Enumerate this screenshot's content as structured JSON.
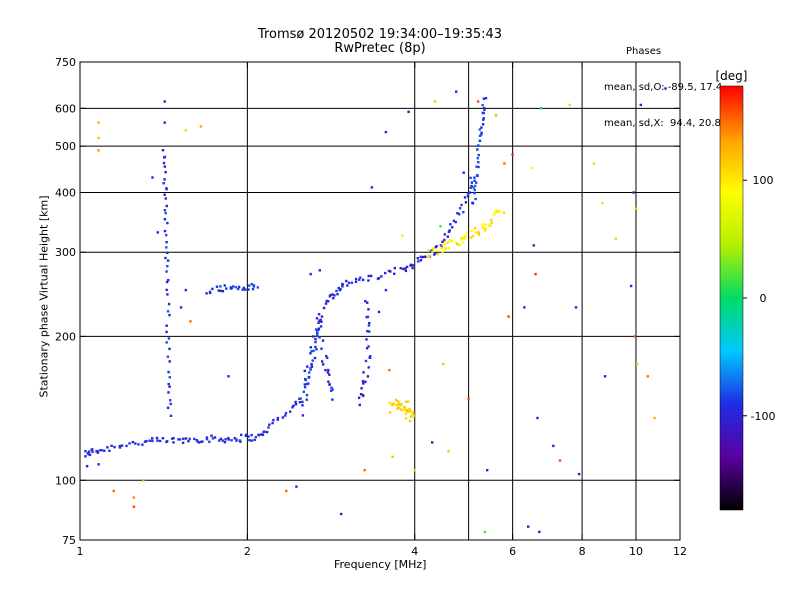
{
  "header": {
    "title": "Tromsø 20120502 19:34:00–19:35:43",
    "subtitle": "RwPretec (8p)"
  },
  "phases_box": {
    "title": "Phases",
    "line_o": "mean, sd,O: -89.5, 17.4",
    "line_x": "mean, sd,X:  94.4, 20.8"
  },
  "colorbar": {
    "label": "[deg]",
    "ticks": [
      {
        "value": 100,
        "label": "100"
      },
      {
        "value": 0,
        "label": "0"
      },
      {
        "value": -100,
        "label": "-100"
      }
    ],
    "range": [
      -180,
      180
    ],
    "colors": [
      "#000000",
      "#5a00a0",
      "#1e2ce6",
      "#00c8ff",
      "#00dc64",
      "#b4f000",
      "#ffff00",
      "#ffa000",
      "#ff0000"
    ]
  },
  "chart_data": {
    "type": "scatter",
    "title": "Tromsø 20120502 19:34:00–19:35:43",
    "subtitle": "RwPretec (8p)",
    "xlabel": "Frequency [MHz]",
    "ylabel": "Stationary phase Virtual Height [km]",
    "xscale": "log",
    "yscale": "log",
    "xlim": [
      1,
      12
    ],
    "ylim": [
      75,
      750
    ],
    "grid": true,
    "x_ticks": [
      {
        "value": 1,
        "label": "1"
      },
      {
        "value": 2,
        "label": "2"
      },
      {
        "value": 4,
        "label": "4"
      },
      {
        "value": 6,
        "label": "6"
      },
      {
        "value": 8,
        "label": "8"
      },
      {
        "value": 10,
        "label": "10"
      },
      {
        "value": 12,
        "label": "12"
      }
    ],
    "y_ticks": [
      {
        "value": 75,
        "label": "75"
      },
      {
        "value": 100,
        "label": "100"
      },
      {
        "value": 200,
        "label": "200"
      },
      {
        "value": 300,
        "label": "300"
      },
      {
        "value": 400,
        "label": "400"
      },
      {
        "value": 500,
        "label": "500"
      },
      {
        "value": 600,
        "label": "600"
      },
      {
        "value": 750,
        "label": "750"
      }
    ],
    "grid_x": [
      2,
      4,
      5,
      6,
      8,
      10
    ],
    "grid_y": [
      100,
      200,
      300,
      400,
      500,
      600
    ],
    "color_scale": "phase [deg], -180 (black) to 180 (red)",
    "traces": [
      {
        "name": "",
        "phase": -95,
        "jitter": 0.012,
        "points": [
          [
            1.02,
            113
          ],
          [
            1.05,
            115
          ],
          [
            1.1,
            116
          ],
          [
            1.2,
            119
          ],
          [
            1.3,
            120
          ],
          [
            1.4,
            121
          ],
          [
            1.5,
            121
          ],
          [
            1.6,
            122
          ],
          [
            1.7,
            122
          ],
          [
            1.8,
            122
          ],
          [
            1.9,
            122
          ],
          [
            2.0,
            123
          ],
          [
            2.1,
            123
          ],
          [
            2.2,
            130
          ],
          [
            2.35,
            138
          ],
          [
            2.5,
            150
          ],
          [
            2.6,
            170
          ],
          [
            2.7,
            210
          ],
          [
            2.8,
            240
          ],
          [
            2.9,
            250
          ],
          [
            3.0,
            258
          ],
          [
            3.2,
            262
          ],
          [
            3.5,
            268
          ],
          [
            3.8,
            276
          ],
          [
            4.0,
            285
          ],
          [
            4.2,
            295
          ],
          [
            4.4,
            305
          ],
          [
            4.6,
            330
          ],
          [
            4.8,
            360
          ],
          [
            5.0,
            395
          ],
          [
            5.1,
            440
          ]
        ]
      },
      {
        "name": "",
        "phase": -90,
        "jitter": 0.02,
        "points": [
          [
            2.5,
            140
          ],
          [
            2.55,
            160
          ],
          [
            2.6,
            180
          ],
          [
            2.65,
            200
          ],
          [
            2.7,
            220
          ],
          [
            2.75,
            180
          ],
          [
            2.8,
            160
          ],
          [
            2.85,
            150
          ]
        ]
      },
      {
        "name": "",
        "phase": -90,
        "jitter": 0.012,
        "points": [
          [
            1.7,
            250
          ],
          [
            1.8,
            252
          ],
          [
            1.9,
            253
          ],
          [
            2.0,
            253
          ],
          [
            2.1,
            254
          ]
        ]
      },
      {
        "name": "",
        "phase": -95,
        "jitter": 0.015,
        "points": [
          [
            3.2,
            145
          ],
          [
            3.25,
            160
          ],
          [
            3.3,
            180
          ],
          [
            3.3,
            210
          ],
          [
            3.25,
            240
          ]
        ]
      },
      {
        "name": "",
        "phase": -85,
        "jitter": 0.01,
        "points": [
          [
            5.1,
            380
          ],
          [
            5.15,
            420
          ],
          [
            5.2,
            470
          ],
          [
            5.25,
            530
          ],
          [
            5.3,
            580
          ],
          [
            5.35,
            640
          ]
        ]
      },
      {
        "name": "",
        "phase": -92,
        "jitter": 0.01,
        "points": [
          [
            1.42,
            490
          ],
          [
            1.42,
            420
          ],
          [
            1.43,
            360
          ],
          [
            1.43,
            300
          ],
          [
            1.44,
            250
          ],
          [
            1.44,
            200
          ],
          [
            1.45,
            160
          ],
          [
            1.45,
            135
          ]
        ]
      },
      {
        "name": "",
        "phase": 100,
        "jitter": 0.015,
        "points": [
          [
            4.2,
            298
          ],
          [
            4.4,
            303
          ],
          [
            4.6,
            310
          ],
          [
            4.8,
            318
          ],
          [
            5.0,
            325
          ],
          [
            5.2,
            332
          ],
          [
            5.4,
            340
          ],
          [
            5.6,
            355
          ],
          [
            5.75,
            370
          ]
        ]
      },
      {
        "name": "",
        "phase": 110,
        "jitter": 0.02,
        "points": [
          [
            3.6,
            142
          ],
          [
            3.7,
            145
          ],
          [
            3.8,
            140
          ],
          [
            3.9,
            138
          ],
          [
            3.95,
            135
          ],
          [
            3.85,
            146
          ]
        ]
      }
    ],
    "scatter_points": [
      {
        "x": 1.42,
        "y": 620,
        "phase": -100
      },
      {
        "x": 1.42,
        "y": 560,
        "phase": -100
      },
      {
        "x": 1.08,
        "y": 560,
        "phase": 130
      },
      {
        "x": 1.08,
        "y": 520,
        "phase": 120
      },
      {
        "x": 1.08,
        "y": 490,
        "phase": 140
      },
      {
        "x": 1.55,
        "y": 540,
        "phase": 110
      },
      {
        "x": 1.65,
        "y": 550,
        "phase": 130
      },
      {
        "x": 2.35,
        "y": 95,
        "phase": 150
      },
      {
        "x": 2.45,
        "y": 97,
        "phase": -100
      },
      {
        "x": 2.95,
        "y": 85,
        "phase": -110
      },
      {
        "x": 3.25,
        "y": 105,
        "phase": 150
      },
      {
        "x": 3.35,
        "y": 410,
        "phase": -110
      },
      {
        "x": 3.55,
        "y": 535,
        "phase": -100
      },
      {
        "x": 3.9,
        "y": 590,
        "phase": -120
      },
      {
        "x": 4.35,
        "y": 620,
        "phase": 120
      },
      {
        "x": 4.75,
        "y": 650,
        "phase": -100
      },
      {
        "x": 5.2,
        "y": 620,
        "phase": 160
      },
      {
        "x": 5.6,
        "y": 580,
        "phase": 130
      },
      {
        "x": 5.8,
        "y": 460,
        "phase": 150
      },
      {
        "x": 6.0,
        "y": 480,
        "phase": 170
      },
      {
        "x": 6.5,
        "y": 450,
        "phase": 100
      },
      {
        "x": 6.55,
        "y": 310,
        "phase": -110
      },
      {
        "x": 6.6,
        "y": 270,
        "phase": 170
      },
      {
        "x": 6.75,
        "y": 600,
        "phase": 10
      },
      {
        "x": 7.6,
        "y": 610,
        "phase": 110
      },
      {
        "x": 8.4,
        "y": 460,
        "phase": 110
      },
      {
        "x": 8.7,
        "y": 380,
        "phase": 110
      },
      {
        "x": 9.2,
        "y": 320,
        "phase": 110
      },
      {
        "x": 9.9,
        "y": 400,
        "phase": -100
      },
      {
        "x": 10.0,
        "y": 370,
        "phase": 40
      },
      {
        "x": 10.2,
        "y": 610,
        "phase": -100
      },
      {
        "x": 11.3,
        "y": 660,
        "phase": -110
      },
      {
        "x": 9.8,
        "y": 255,
        "phase": -90
      },
      {
        "x": 9.95,
        "y": 200,
        "phase": 160
      },
      {
        "x": 10.05,
        "y": 175,
        "phase": 120
      },
      {
        "x": 10.5,
        "y": 165,
        "phase": 150
      },
      {
        "x": 10.8,
        "y": 135,
        "phase": 130
      },
      {
        "x": 7.1,
        "y": 118,
        "phase": -100
      },
      {
        "x": 7.3,
        "y": 110,
        "phase": 160
      },
      {
        "x": 7.9,
        "y": 103,
        "phase": -110
      },
      {
        "x": 6.65,
        "y": 135,
        "phase": -100
      },
      {
        "x": 6.4,
        "y": 80,
        "phase": -110
      },
      {
        "x": 6.7,
        "y": 78,
        "phase": -120
      },
      {
        "x": 5.35,
        "y": 78,
        "phase": 20
      },
      {
        "x": 5.4,
        "y": 105,
        "phase": -90
      },
      {
        "x": 5.0,
        "y": 148,
        "phase": 160
      },
      {
        "x": 4.5,
        "y": 175,
        "phase": 120
      },
      {
        "x": 4.3,
        "y": 120,
        "phase": -100
      },
      {
        "x": 4.6,
        "y": 115,
        "phase": 120
      },
      {
        "x": 5.9,
        "y": 220,
        "phase": 160
      },
      {
        "x": 6.3,
        "y": 230,
        "phase": -90
      },
      {
        "x": 7.8,
        "y": 230,
        "phase": -95
      },
      {
        "x": 8.8,
        "y": 165,
        "phase": -100
      },
      {
        "x": 4.0,
        "y": 105,
        "phase": 110
      },
      {
        "x": 1.25,
        "y": 88,
        "phase": 160
      },
      {
        "x": 1.25,
        "y": 92,
        "phase": 140
      },
      {
        "x": 1.15,
        "y": 95,
        "phase": 150
      },
      {
        "x": 1.3,
        "y": 100,
        "phase": 130
      },
      {
        "x": 1.03,
        "y": 107,
        "phase": -100
      },
      {
        "x": 1.08,
        "y": 108,
        "phase": -90
      },
      {
        "x": 1.52,
        "y": 230,
        "phase": -100
      },
      {
        "x": 1.55,
        "y": 250,
        "phase": -90
      },
      {
        "x": 1.58,
        "y": 215,
        "phase": 150
      },
      {
        "x": 1.38,
        "y": 330,
        "phase": -95
      },
      {
        "x": 1.35,
        "y": 430,
        "phase": -95
      },
      {
        "x": 1.85,
        "y": 165,
        "phase": -100
      },
      {
        "x": 2.6,
        "y": 270,
        "phase": -95
      },
      {
        "x": 2.7,
        "y": 275,
        "phase": -100
      },
      {
        "x": 3.55,
        "y": 250,
        "phase": -95
      },
      {
        "x": 3.6,
        "y": 170,
        "phase": 150
      },
      {
        "x": 3.65,
        "y": 112,
        "phase": 120
      },
      {
        "x": 3.8,
        "y": 325,
        "phase": 100
      },
      {
        "x": 4.9,
        "y": 440,
        "phase": -90
      },
      {
        "x": 4.45,
        "y": 340,
        "phase": 20
      },
      {
        "x": 3.45,
        "y": 225,
        "phase": -100
      }
    ]
  }
}
